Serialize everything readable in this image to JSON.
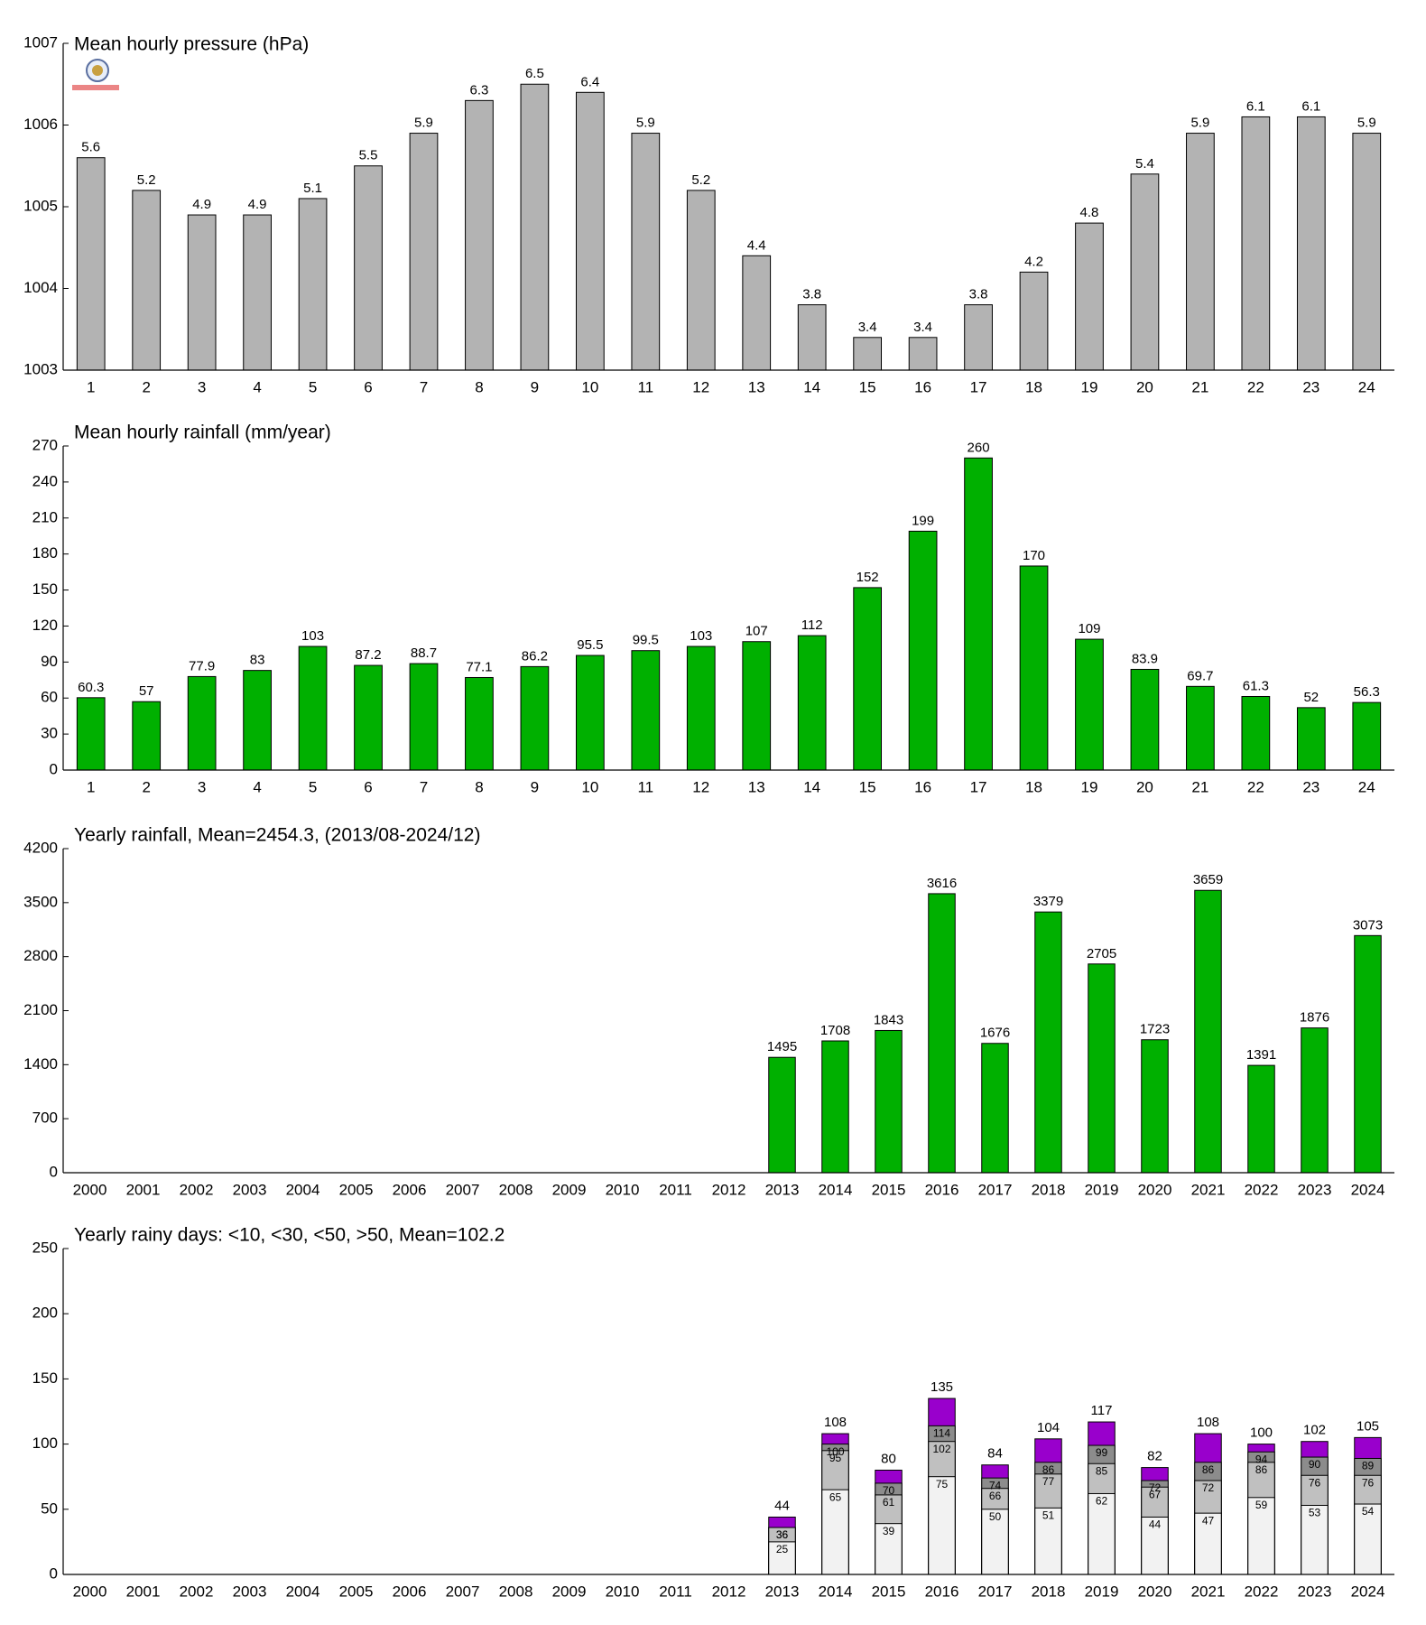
{
  "chart_data": [
    {
      "type": "bar",
      "title": "Mean hourly pressure (hPa)",
      "categories": [
        "1",
        "2",
        "3",
        "4",
        "5",
        "6",
        "7",
        "8",
        "9",
        "10",
        "11",
        "12",
        "13",
        "14",
        "15",
        "16",
        "17",
        "18",
        "19",
        "20",
        "21",
        "22",
        "23",
        "24"
      ],
      "values": [
        1005.6,
        1005.2,
        1004.9,
        1004.9,
        1005.1,
        1005.5,
        1005.9,
        1006.3,
        1006.5,
        1006.4,
        1005.9,
        1005.2,
        1004.4,
        1003.8,
        1003.4,
        1003.4,
        1003.8,
        1004.2,
        1004.8,
        1005.4,
        1005.9,
        1006.1,
        1006.1,
        1005.9
      ],
      "value_labels": [
        "5.6",
        "5.2",
        "4.9",
        "4.9",
        "5.1",
        "5.5",
        "5.9",
        "6.3",
        "6.5",
        "6.4",
        "5.9",
        "5.2",
        "4.4",
        "3.8",
        "3.4",
        "3.4",
        "3.8",
        "4.2",
        "4.8",
        "5.4",
        "5.9",
        "6.1",
        "6.1",
        "5.9"
      ],
      "color": "#b3b3b3",
      "ylim": [
        1003,
        1007
      ],
      "yticks": [
        1003,
        1004,
        1005,
        1006,
        1007
      ],
      "grid": false
    },
    {
      "type": "bar",
      "title": "Mean hourly rainfall (mm/year)",
      "categories": [
        "1",
        "2",
        "3",
        "4",
        "5",
        "6",
        "7",
        "8",
        "9",
        "10",
        "11",
        "12",
        "13",
        "14",
        "15",
        "16",
        "17",
        "18",
        "19",
        "20",
        "21",
        "22",
        "23",
        "24"
      ],
      "values": [
        60.3,
        57,
        77.9,
        83,
        103,
        87.2,
        88.7,
        77.1,
        86.2,
        95.5,
        99.5,
        103,
        107,
        112,
        152,
        199,
        260,
        170,
        109,
        83.9,
        69.7,
        61.3,
        52,
        56.3
      ],
      "color": "#00b000",
      "ylim": [
        0,
        270
      ],
      "yticks": [
        0,
        30,
        60,
        90,
        120,
        150,
        180,
        210,
        240,
        270
      ],
      "grid": false
    },
    {
      "type": "bar",
      "title": "Yearly rainfall, Mean=2454.3, (2013/08-2024/12)",
      "categories": [
        "2000",
        "2001",
        "2002",
        "2003",
        "2004",
        "2005",
        "2006",
        "2007",
        "2008",
        "2009",
        "2010",
        "2011",
        "2012",
        "2013",
        "2014",
        "2015",
        "2016",
        "2017",
        "2018",
        "2019",
        "2020",
        "2021",
        "2022",
        "2023",
        "2024"
      ],
      "values": [
        null,
        null,
        null,
        null,
        null,
        null,
        null,
        null,
        null,
        null,
        null,
        null,
        null,
        1495,
        1708,
        1843,
        3616,
        1676,
        3379,
        2705,
        1723,
        3659,
        1391,
        1876,
        3073
      ],
      "color": "#00b000",
      "ylim": [
        0,
        4200
      ],
      "yticks": [
        0,
        700,
        1400,
        2100,
        2800,
        3500,
        4200
      ],
      "grid": false
    },
    {
      "type": "bar",
      "title": "Yearly rainy days: <10, <30, <50, >50, Mean=102.2",
      "categories": [
        "2000",
        "2001",
        "2002",
        "2003",
        "2004",
        "2005",
        "2006",
        "2007",
        "2008",
        "2009",
        "2010",
        "2011",
        "2012",
        "2013",
        "2014",
        "2015",
        "2016",
        "2017",
        "2018",
        "2019",
        "2020",
        "2021",
        "2022",
        "2023",
        "2024"
      ],
      "series": [
        {
          "color": "#f2f2f2",
          "values": [
            null,
            null,
            null,
            null,
            null,
            null,
            null,
            null,
            null,
            null,
            null,
            null,
            null,
            25,
            65,
            39,
            75,
            50,
            51,
            62,
            44,
            47,
            59,
            53,
            54
          ]
        },
        {
          "color": "#c0c0c0",
          "values": [
            null,
            null,
            null,
            null,
            null,
            null,
            null,
            null,
            null,
            null,
            null,
            null,
            null,
            36,
            95,
            61,
            102,
            66,
            77,
            85,
            67,
            72,
            86,
            76,
            76
          ]
        },
        {
          "color": "#8c8c8c",
          "values": [
            null,
            null,
            null,
            null,
            null,
            null,
            null,
            null,
            null,
            null,
            null,
            null,
            null,
            36,
            100,
            70,
            114,
            74,
            86,
            99,
            72,
            86,
            94,
            90,
            89
          ]
        },
        {
          "color": "#9900cc",
          "values": [
            null,
            null,
            null,
            null,
            null,
            null,
            null,
            null,
            null,
            null,
            null,
            null,
            null,
            44,
            108,
            80,
            135,
            84,
            104,
            117,
            82,
            108,
            100,
            102,
            105
          ]
        }
      ],
      "ylim": [
        0,
        250
      ],
      "yticks": [
        0,
        50,
        100,
        150,
        200,
        250
      ],
      "grid": false
    }
  ]
}
